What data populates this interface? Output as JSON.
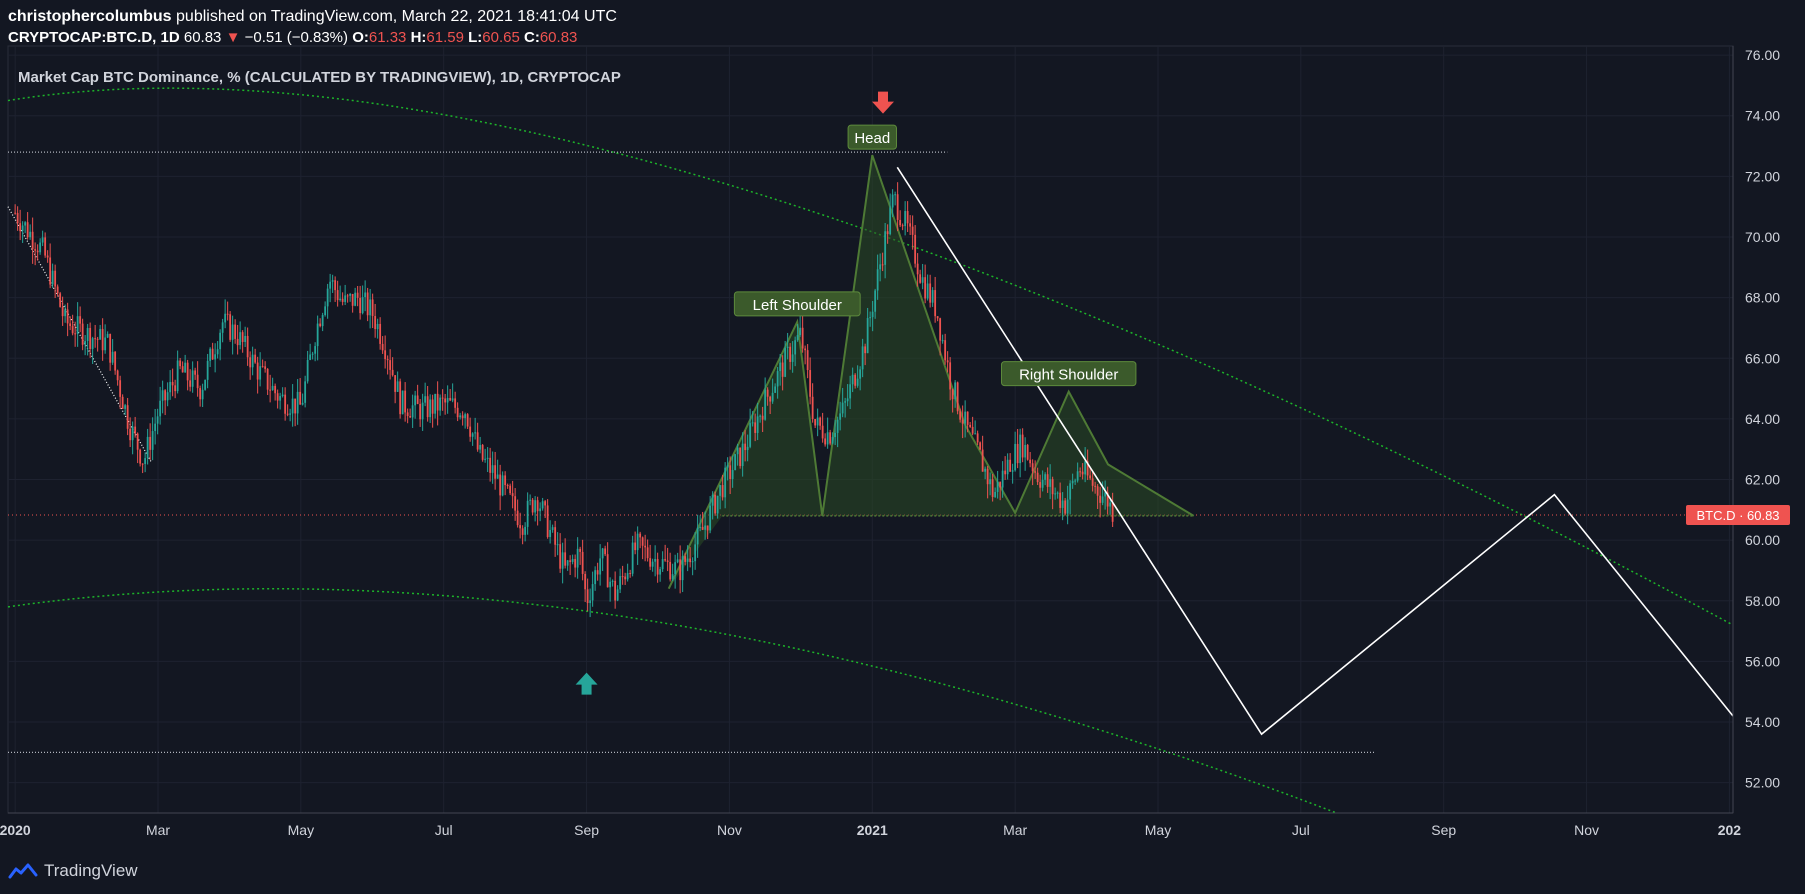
{
  "header": {
    "author": "christophercolumbus",
    "published_text": "published on TradingView.com, March 22, 2021 18:41:04 UTC"
  },
  "ohlc": {
    "symbol": "CRYPTOCAP:BTC.D, 1D",
    "last": "60.83",
    "change": "−0.51 (−0.83%)",
    "o_label": "O:",
    "o": "61.33",
    "h_label": "H:",
    "h": "61.59",
    "l_label": "L:",
    "l": "60.65",
    "c_label": "C:",
    "c": "60.83"
  },
  "footer": {
    "brand": "TradingView"
  },
  "colors": {
    "background": "#131722",
    "grid": "#1e2230",
    "axis_text": "#d1d4dc",
    "up_candle": "#26a69a",
    "down_candle": "#ef5350",
    "label_green": "#3b5a2b",
    "pattern_fill": "#2a4a25",
    "pattern_line": "#4e7a35",
    "arc_green": "#1db42a",
    "projection": "#ffffff",
    "price_badge": "#ef5350"
  },
  "chart_data": {
    "type": "candlestick",
    "title": "Market Cap BTC Dominance, % (CALCULATED BY TRADINGVIEW), 1D, CRYPTOCAP",
    "x_tick_labels": [
      "2020",
      "Mar",
      "May",
      "Jul",
      "Sep",
      "Nov",
      "2021",
      "Mar",
      "May",
      "Jul",
      "Sep",
      "Nov",
      "202"
    ],
    "y_ticks": [
      "76.00",
      "74.00",
      "72.00",
      "70.00",
      "68.00",
      "66.00",
      "64.00",
      "62.00",
      "60.00",
      "58.00",
      "56.00",
      "54.00",
      "52.00"
    ],
    "ylim": [
      51,
      76.3
    ],
    "xlim_months": [
      -0.1,
      24.05
    ],
    "price_series": [
      {
        "m": 0.0,
        "v": 70.8
      },
      {
        "m": 0.4,
        "v": 69.5
      },
      {
        "m": 0.7,
        "v": 67.2
      },
      {
        "m": 1.0,
        "v": 66.8
      },
      {
        "m": 1.3,
        "v": 66.5
      },
      {
        "m": 1.6,
        "v": 63.8
      },
      {
        "m": 1.8,
        "v": 62.6
      },
      {
        "m": 2.0,
        "v": 64.2
      },
      {
        "m": 2.3,
        "v": 65.6
      },
      {
        "m": 2.6,
        "v": 65.0
      },
      {
        "m": 2.9,
        "v": 67.2
      },
      {
        "m": 3.1,
        "v": 66.8
      },
      {
        "m": 3.4,
        "v": 65.6
      },
      {
        "m": 3.7,
        "v": 64.7
      },
      {
        "m": 4.0,
        "v": 64.4
      },
      {
        "m": 4.2,
        "v": 66.8
      },
      {
        "m": 4.4,
        "v": 68.6
      },
      {
        "m": 4.6,
        "v": 67.8
      },
      {
        "m": 4.8,
        "v": 68.0
      },
      {
        "m": 5.0,
        "v": 67.5
      },
      {
        "m": 5.2,
        "v": 66.3
      },
      {
        "m": 5.4,
        "v": 64.5
      },
      {
        "m": 5.7,
        "v": 64.3
      },
      {
        "m": 6.0,
        "v": 64.5
      },
      {
        "m": 6.3,
        "v": 64.3
      },
      {
        "m": 6.5,
        "v": 62.8
      },
      {
        "m": 6.7,
        "v": 62.2
      },
      {
        "m": 6.9,
        "v": 61.4
      },
      {
        "m": 7.1,
        "v": 60.6
      },
      {
        "m": 7.3,
        "v": 61.5
      },
      {
        "m": 7.5,
        "v": 60.2
      },
      {
        "m": 7.7,
        "v": 59.0
      },
      {
        "m": 7.9,
        "v": 59.6
      },
      {
        "m": 8.0,
        "v": 58.0
      },
      {
        "m": 8.2,
        "v": 59.5
      },
      {
        "m": 8.4,
        "v": 58.2
      },
      {
        "m": 8.7,
        "v": 59.8
      },
      {
        "m": 9.0,
        "v": 59.3
      },
      {
        "m": 9.3,
        "v": 59.0
      },
      {
        "m": 9.6,
        "v": 60.2
      },
      {
        "m": 9.9,
        "v": 61.8
      },
      {
        "m": 10.2,
        "v": 63.0
      },
      {
        "m": 10.5,
        "v": 64.6
      },
      {
        "m": 10.8,
        "v": 66.0
      },
      {
        "m": 11.0,
        "v": 66.8
      },
      {
        "m": 11.2,
        "v": 63.8
      },
      {
        "m": 11.4,
        "v": 63.5
      },
      {
        "m": 11.6,
        "v": 64.3
      },
      {
        "m": 11.9,
        "v": 66.5
      },
      {
        "m": 12.1,
        "v": 69.0
      },
      {
        "m": 12.3,
        "v": 71.3
      },
      {
        "m": 12.5,
        "v": 70.2
      },
      {
        "m": 12.7,
        "v": 68.6
      },
      {
        "m": 12.9,
        "v": 67.6
      },
      {
        "m": 13.1,
        "v": 65.2
      },
      {
        "m": 13.3,
        "v": 63.8
      },
      {
        "m": 13.5,
        "v": 62.8
      },
      {
        "m": 13.7,
        "v": 61.5
      },
      {
        "m": 13.9,
        "v": 62.5
      },
      {
        "m": 14.1,
        "v": 63.2
      },
      {
        "m": 14.3,
        "v": 62.2
      },
      {
        "m": 14.5,
        "v": 61.7
      },
      {
        "m": 14.7,
        "v": 61.2
      },
      {
        "m": 14.9,
        "v": 62.4
      },
      {
        "m": 15.1,
        "v": 61.8
      },
      {
        "m": 15.3,
        "v": 61.3
      },
      {
        "m": 15.4,
        "v": 60.8
      }
    ],
    "annotations": [
      {
        "label": "Left Shoulder",
        "m": 10.95,
        "v": 67.2
      },
      {
        "label": "Head",
        "m": 12.0,
        "v": 72.7
      },
      {
        "label": "Right Shoulder",
        "m": 14.75,
        "v": 64.9
      }
    ],
    "current_price_label": "BTC.D · 60.83",
    "current_price": 60.83,
    "projection_path": [
      {
        "m": 12.35,
        "v": 72.3
      },
      {
        "m": 17.45,
        "v": 53.6
      },
      {
        "m": 21.55,
        "v": 61.5
      },
      {
        "m": 24.05,
        "v": 54.2
      }
    ],
    "horizontal_levels": [
      {
        "v": 72.8,
        "m_from": -0.1,
        "m_to": 13.05
      },
      {
        "v": 53.0,
        "m_from": -0.1,
        "m_to": 19.05
      }
    ],
    "arrows": [
      {
        "dir": "down",
        "m": 12.15,
        "v": 74.4,
        "color": "#ef5350"
      },
      {
        "dir": "up",
        "m": 8.0,
        "v": 55.3,
        "color": "#26a69a"
      }
    ]
  }
}
